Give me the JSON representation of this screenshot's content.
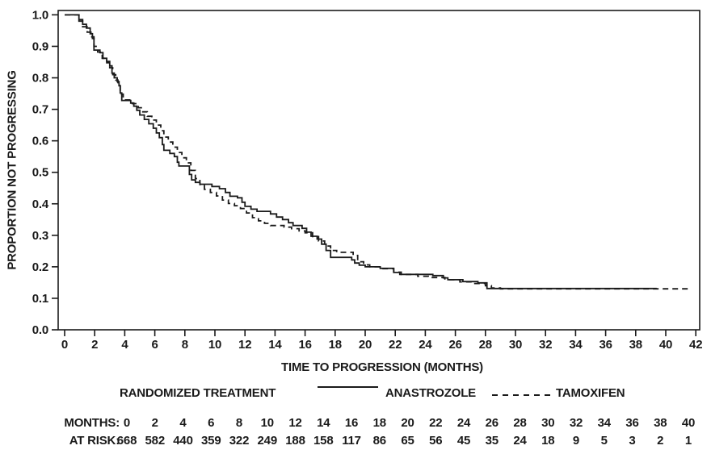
{
  "figure": {
    "background": "#ffffff",
    "ink_color": "#1a1a1a"
  },
  "legend": {
    "title": "RANDOMIZED TREATMENT",
    "series": [
      {
        "label": "ANASTROZOLE",
        "style": "solid"
      },
      {
        "label": "TAMOXIFEN",
        "style": "dashed"
      }
    ]
  },
  "chart_data": {
    "type": "line",
    "subtype": "kaplan-meier-step",
    "title": "",
    "xlabel": "TIME TO PROGRESSION (MONTHS)",
    "ylabel": "PROPORTION NOT PROGRESSING",
    "xlim": [
      0,
      42
    ],
    "ylim": [
      0.0,
      1.0
    ],
    "grid": false,
    "frame": "full-box",
    "legend_position": "below",
    "x_ticks": [
      0,
      2,
      4,
      6,
      8,
      10,
      12,
      14,
      16,
      18,
      20,
      22,
      24,
      26,
      28,
      30,
      32,
      34,
      36,
      38,
      40,
      42
    ],
    "y_tick_labels": [
      "0.0",
      "0.1",
      "0.2",
      "0.3",
      "0.4",
      "0.5",
      "0.6",
      "0.7",
      "0.8",
      "0.9",
      "1.0"
    ],
    "y_tick_values": [
      0.0,
      0.1,
      0.2,
      0.3,
      0.4,
      0.5,
      0.6,
      0.7,
      0.8,
      0.9,
      1.0
    ],
    "series": [
      {
        "name": "ANASTROZOLE",
        "style": "solid",
        "color": "#1a1a1a",
        "step": true,
        "points": [
          [
            0,
            1.0
          ],
          [
            0.85,
            1.0
          ],
          [
            0.95,
            0.985
          ],
          [
            1.2,
            0.97
          ],
          [
            1.45,
            0.958
          ],
          [
            1.7,
            0.94
          ],
          [
            1.85,
            0.925
          ],
          [
            1.95,
            0.888
          ],
          [
            2.35,
            0.88
          ],
          [
            2.55,
            0.862
          ],
          [
            2.8,
            0.852
          ],
          [
            3.0,
            0.838
          ],
          [
            3.15,
            0.815
          ],
          [
            3.3,
            0.8
          ],
          [
            3.5,
            0.788
          ],
          [
            3.62,
            0.775
          ],
          [
            3.7,
            0.752
          ],
          [
            3.8,
            0.728
          ],
          [
            4.4,
            0.72
          ],
          [
            4.6,
            0.71
          ],
          [
            4.8,
            0.697
          ],
          [
            5.0,
            0.682
          ],
          [
            5.3,
            0.668
          ],
          [
            5.6,
            0.654
          ],
          [
            5.9,
            0.64
          ],
          [
            6.1,
            0.625
          ],
          [
            6.3,
            0.61
          ],
          [
            6.5,
            0.588
          ],
          [
            6.6,
            0.57
          ],
          [
            7.0,
            0.56
          ],
          [
            7.3,
            0.55
          ],
          [
            7.5,
            0.532
          ],
          [
            7.6,
            0.52
          ],
          [
            8.3,
            0.493
          ],
          [
            8.45,
            0.476
          ],
          [
            8.7,
            0.468
          ],
          [
            9.0,
            0.462
          ],
          [
            9.8,
            0.455
          ],
          [
            10.3,
            0.448
          ],
          [
            10.7,
            0.436
          ],
          [
            11.0,
            0.424
          ],
          [
            11.5,
            0.419
          ],
          [
            11.8,
            0.405
          ],
          [
            12.0,
            0.392
          ],
          [
            12.4,
            0.383
          ],
          [
            12.8,
            0.376
          ],
          [
            13.7,
            0.368
          ],
          [
            14.1,
            0.358
          ],
          [
            14.5,
            0.35
          ],
          [
            14.9,
            0.34
          ],
          [
            15.2,
            0.331
          ],
          [
            15.8,
            0.322
          ],
          [
            16.1,
            0.31
          ],
          [
            16.4,
            0.297
          ],
          [
            16.8,
            0.288
          ],
          [
            17.1,
            0.272
          ],
          [
            17.4,
            0.252
          ],
          [
            17.7,
            0.23
          ],
          [
            19.1,
            0.222
          ],
          [
            19.3,
            0.212
          ],
          [
            19.6,
            0.205
          ],
          [
            20.0,
            0.2
          ],
          [
            21.0,
            0.195
          ],
          [
            21.9,
            0.182
          ],
          [
            22.3,
            0.176
          ],
          [
            24.5,
            0.172
          ],
          [
            25.2,
            0.165
          ],
          [
            25.5,
            0.159
          ],
          [
            26.5,
            0.153
          ],
          [
            27.5,
            0.149
          ],
          [
            28.1,
            0.131
          ],
          [
            39.4,
            0.131
          ]
        ]
      },
      {
        "name": "TAMOXIFEN",
        "style": "dashed",
        "color": "#1a1a1a",
        "step": true,
        "points": [
          [
            0,
            1.0
          ],
          [
            0.85,
            1.0
          ],
          [
            0.95,
            0.98
          ],
          [
            1.2,
            0.962
          ],
          [
            1.5,
            0.945
          ],
          [
            1.75,
            0.93
          ],
          [
            1.95,
            0.9
          ],
          [
            2.2,
            0.882
          ],
          [
            2.5,
            0.862
          ],
          [
            2.8,
            0.848
          ],
          [
            3.0,
            0.832
          ],
          [
            3.2,
            0.81
          ],
          [
            3.4,
            0.793
          ],
          [
            3.55,
            0.775
          ],
          [
            3.7,
            0.748
          ],
          [
            3.9,
            0.73
          ],
          [
            4.5,
            0.718
          ],
          [
            4.9,
            0.705
          ],
          [
            5.2,
            0.692
          ],
          [
            5.5,
            0.678
          ],
          [
            5.8,
            0.666
          ],
          [
            6.1,
            0.65
          ],
          [
            6.4,
            0.632
          ],
          [
            6.6,
            0.612
          ],
          [
            6.9,
            0.596
          ],
          [
            7.2,
            0.58
          ],
          [
            7.5,
            0.563
          ],
          [
            7.8,
            0.546
          ],
          [
            8.1,
            0.53
          ],
          [
            8.4,
            0.506
          ],
          [
            8.7,
            0.48
          ],
          [
            9.0,
            0.461
          ],
          [
            9.3,
            0.446
          ],
          [
            9.7,
            0.436
          ],
          [
            10.1,
            0.425
          ],
          [
            10.5,
            0.412
          ],
          [
            10.9,
            0.401
          ],
          [
            11.3,
            0.394
          ],
          [
            11.7,
            0.385
          ],
          [
            12.1,
            0.371
          ],
          [
            12.5,
            0.356
          ],
          [
            12.9,
            0.346
          ],
          [
            13.3,
            0.338
          ],
          [
            13.7,
            0.331
          ],
          [
            14.6,
            0.326
          ],
          [
            15.1,
            0.321
          ],
          [
            15.6,
            0.314
          ],
          [
            16.0,
            0.308
          ],
          [
            16.5,
            0.296
          ],
          [
            16.9,
            0.282
          ],
          [
            17.3,
            0.266
          ],
          [
            17.7,
            0.252
          ],
          [
            18.1,
            0.246
          ],
          [
            19.2,
            0.236
          ],
          [
            19.5,
            0.216
          ],
          [
            19.9,
            0.206
          ],
          [
            20.3,
            0.2
          ],
          [
            21.0,
            0.194
          ],
          [
            21.9,
            0.183
          ],
          [
            22.4,
            0.176
          ],
          [
            23.5,
            0.17
          ],
          [
            24.2,
            0.166
          ],
          [
            25.3,
            0.159
          ],
          [
            26.3,
            0.152
          ],
          [
            27.2,
            0.147
          ],
          [
            28.0,
            0.14
          ],
          [
            28.4,
            0.133
          ],
          [
            29.0,
            0.13
          ],
          [
            41.6,
            0.13
          ]
        ]
      }
    ],
    "at_risk": {
      "months_label": "MONTHS:",
      "risk_label": "AT RISK:",
      "months": [
        0,
        2,
        4,
        6,
        8,
        10,
        12,
        14,
        16,
        18,
        20,
        22,
        24,
        26,
        28,
        30,
        32,
        34,
        36,
        38,
        40
      ],
      "values": [
        668,
        582,
        440,
        359,
        322,
        249,
        188,
        158,
        117,
        86,
        65,
        56,
        45,
        35,
        24,
        18,
        9,
        5,
        3,
        2,
        1
      ]
    }
  }
}
